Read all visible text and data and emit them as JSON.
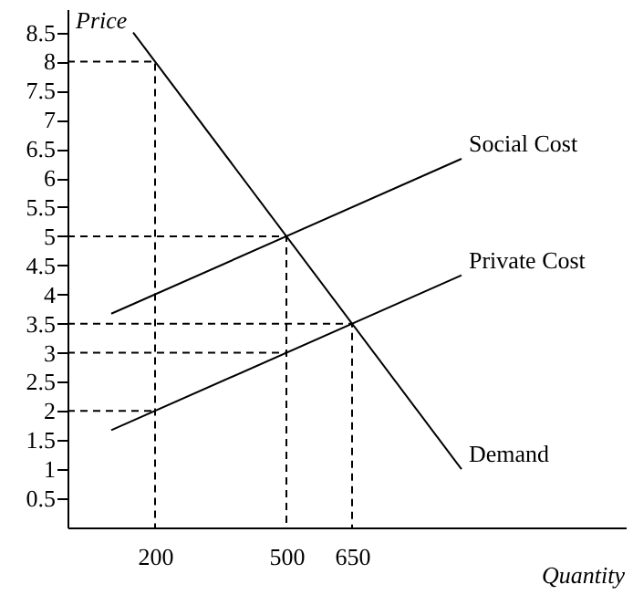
{
  "chart_data": {
    "type": "line",
    "xlabel": "Quantity",
    "ylabel": "Price",
    "xlim": [
      0,
      1275
    ],
    "ylim": [
      0,
      8.9
    ],
    "xticks": [
      200,
      500,
      650
    ],
    "yticks": [
      0.5,
      1,
      1.5,
      2,
      2.5,
      3,
      3.5,
      4,
      4.5,
      5,
      5.5,
      6,
      6.5,
      7,
      7.5,
      8,
      8.5
    ],
    "grid": false,
    "series": [
      {
        "name": "Social Cost",
        "color": "#000000",
        "line_style": "solid",
        "x": [
          100,
          900
        ],
        "values": [
          3.67,
          6.33
        ]
      },
      {
        "name": "Private Cost",
        "color": "#000000",
        "line_style": "solid",
        "x": [
          100,
          900
        ],
        "values": [
          1.67,
          4.33
        ]
      },
      {
        "name": "Demand",
        "color": "#000000",
        "line_style": "solid",
        "x": [
          150,
          900
        ],
        "values": [
          8.5,
          1
        ]
      },
      {
        "color": "#000000",
        "line_style": "dashed",
        "x": [
          0,
          200,
          200
        ],
        "values": [
          8,
          8,
          0
        ]
      },
      {
        "color": "#000000",
        "line_style": "dashed",
        "x": [
          0,
          500,
          500
        ],
        "values": [
          5,
          5,
          0
        ]
      },
      {
        "color": "#000000",
        "line_style": "dashed",
        "x": [
          0,
          500
        ],
        "values": [
          3,
          3
        ]
      },
      {
        "color": "#000000",
        "line_style": "dashed",
        "x": [
          0,
          650,
          650
        ],
        "values": [
          3.5,
          3.5,
          0
        ]
      },
      {
        "color": "#000000",
        "line_style": "dashed",
        "x": [
          0,
          200
        ],
        "values": [
          2,
          2
        ]
      }
    ]
  }
}
